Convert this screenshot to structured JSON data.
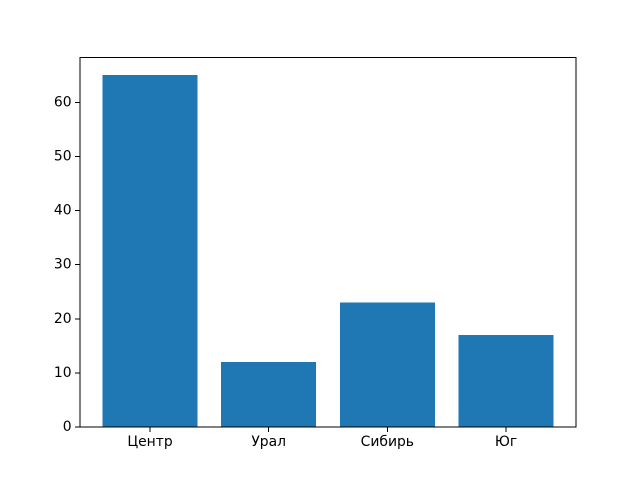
{
  "chart_data": {
    "type": "bar",
    "categories": [
      "Центр",
      "Урал",
      "Сибирь",
      "Юг"
    ],
    "values": [
      65,
      12,
      23,
      17
    ],
    "title": "",
    "xlabel": "",
    "ylabel": "",
    "ylim": [
      0,
      68.25
    ],
    "yticks": [
      0,
      10,
      20,
      30,
      40,
      50,
      60
    ],
    "bar_width_data_units": 0.8,
    "bar_color": "#1f77b4",
    "axis_color": "#000000",
    "text_color": "#000000",
    "background": "#ffffff",
    "grid": false,
    "legend": "none"
  }
}
